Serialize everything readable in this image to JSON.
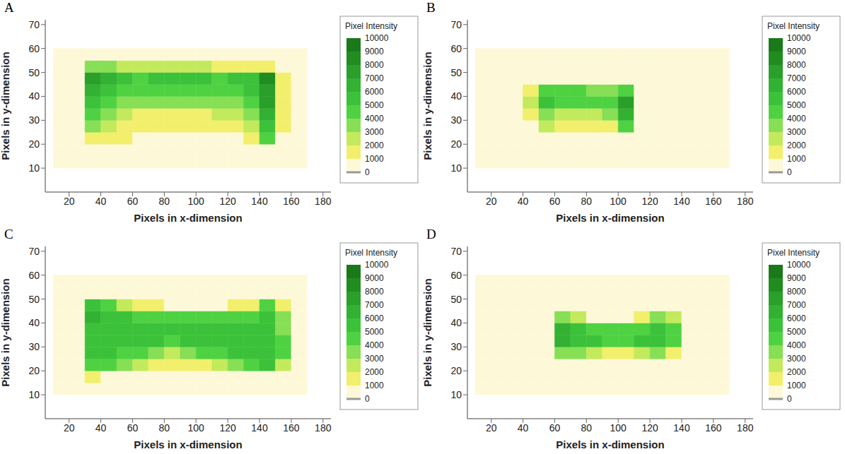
{
  "chart_data": [
    {
      "type": "heatmap",
      "panel": "A",
      "x_label": "Pixels in x-dimension",
      "y_label": "Pixels in y-dimension",
      "xlim": [
        5,
        185
      ],
      "xticks": [
        20,
        40,
        60,
        80,
        100,
        120,
        140,
        160,
        180
      ],
      "ylim": [
        0,
        72
      ],
      "yticks": [
        10,
        20,
        30,
        40,
        50,
        60,
        70
      ],
      "x_edges": [
        10,
        20,
        30,
        40,
        50,
        60,
        70,
        80,
        90,
        100,
        110,
        120,
        130,
        140,
        150,
        160,
        170
      ],
      "y_edges": [
        10,
        15,
        20,
        25,
        30,
        35,
        40,
        45,
        50,
        55,
        60
      ],
      "cells": [
        [
          300,
          300,
          300,
          300,
          300,
          300,
          300,
          300,
          300,
          300,
          300,
          300,
          300,
          300,
          300,
          300
        ],
        [
          300,
          300,
          300,
          300,
          300,
          300,
          300,
          300,
          300,
          300,
          300,
          300,
          300,
          300,
          300,
          300
        ],
        [
          300,
          300,
          1500,
          1500,
          1000,
          800,
          800,
          800,
          800,
          800,
          800,
          900,
          1000,
          4000,
          800,
          300
        ],
        [
          300,
          300,
          3000,
          2500,
          1500,
          1200,
          1200,
          1200,
          1200,
          1200,
          1500,
          1500,
          2000,
          5500,
          1000,
          300
        ],
        [
          300,
          300,
          4000,
          3000,
          2000,
          1500,
          1500,
          1500,
          1500,
          1800,
          2000,
          2500,
          3000,
          6500,
          1200,
          300
        ],
        [
          300,
          300,
          5500,
          4500,
          3500,
          3000,
          3000,
          3000,
          3000,
          3000,
          3500,
          3500,
          4500,
          7000,
          1200,
          300
        ],
        [
          300,
          300,
          6500,
          5000,
          4500,
          4000,
          4500,
          4500,
          4500,
          4000,
          4500,
          4000,
          5000,
          7500,
          1200,
          300
        ],
        [
          300,
          300,
          7000,
          6000,
          5000,
          4500,
          5000,
          5000,
          5000,
          5000,
          4000,
          5000,
          5500,
          8000,
          1000,
          300
        ],
        [
          300,
          300,
          3000,
          3000,
          2500,
          2500,
          2500,
          2500,
          2500,
          2500,
          1000,
          1000,
          1000,
          1500,
          300,
          300
        ],
        [
          300,
          300,
          300,
          300,
          300,
          300,
          300,
          300,
          300,
          300,
          300,
          300,
          300,
          300,
          300,
          300
        ]
      ],
      "colorbar": {
        "title": "Pixel Intensity",
        "range": [
          0,
          10000
        ],
        "ticks": [
          0,
          1000,
          2000,
          3000,
          4000,
          5000,
          6000,
          7000,
          8000,
          9000,
          10000
        ]
      }
    },
    {
      "type": "heatmap",
      "panel": "B",
      "x_label": "Pixels in x-dimension",
      "y_label": "Pixels in y-dimension",
      "xlim": [
        5,
        185
      ],
      "xticks": [
        20,
        40,
        60,
        80,
        100,
        120,
        140,
        160,
        180
      ],
      "ylim": [
        0,
        72
      ],
      "yticks": [
        10,
        20,
        30,
        40,
        50,
        60,
        70
      ],
      "x_edges": [
        10,
        20,
        30,
        40,
        50,
        60,
        70,
        80,
        90,
        100,
        110,
        120,
        130,
        140,
        150,
        160,
        170
      ],
      "y_edges": [
        10,
        15,
        20,
        25,
        30,
        35,
        40,
        45,
        50,
        55,
        60
      ],
      "cells": [
        [
          300,
          300,
          300,
          300,
          300,
          300,
          300,
          300,
          300,
          300,
          300,
          300,
          300,
          300,
          300,
          300
        ],
        [
          300,
          300,
          300,
          300,
          300,
          300,
          300,
          300,
          300,
          300,
          300,
          300,
          300,
          300,
          300,
          300
        ],
        [
          300,
          300,
          300,
          300,
          300,
          300,
          300,
          300,
          300,
          300,
          300,
          300,
          300,
          300,
          300,
          300
        ],
        [
          300,
          300,
          300,
          800,
          2000,
          1200,
          1000,
          1000,
          1500,
          4000,
          300,
          300,
          300,
          300,
          300,
          300
        ],
        [
          300,
          300,
          300,
          1500,
          3500,
          2500,
          2000,
          2000,
          3000,
          6500,
          300,
          300,
          300,
          300,
          300,
          300
        ],
        [
          300,
          300,
          300,
          2500,
          5000,
          4000,
          4000,
          4000,
          4500,
          7500,
          300,
          300,
          300,
          300,
          300,
          300
        ],
        [
          300,
          300,
          300,
          1500,
          4000,
          4000,
          4000,
          3500,
          3000,
          4000,
          300,
          300,
          300,
          300,
          300,
          300
        ],
        [
          300,
          300,
          300,
          300,
          300,
          300,
          300,
          300,
          300,
          300,
          300,
          300,
          300,
          300,
          300,
          300
        ],
        [
          300,
          300,
          300,
          300,
          300,
          300,
          300,
          300,
          300,
          300,
          300,
          300,
          300,
          300,
          300,
          300
        ],
        [
          300,
          300,
          300,
          300,
          300,
          300,
          300,
          300,
          300,
          300,
          300,
          300,
          300,
          300,
          300,
          300
        ]
      ],
      "colorbar": {
        "title": "Pixel Intensity",
        "range": [
          0,
          10000
        ],
        "ticks": [
          0,
          1000,
          2000,
          3000,
          4000,
          5000,
          6000,
          7000,
          8000,
          9000,
          10000
        ]
      }
    },
    {
      "type": "heatmap",
      "panel": "C",
      "x_label": "Pixels in x-dimension",
      "y_label": "Pixels in y-dimension",
      "xlim": [
        5,
        185
      ],
      "xticks": [
        20,
        40,
        60,
        80,
        100,
        120,
        140,
        160,
        180
      ],
      "ylim": [
        0,
        72
      ],
      "yticks": [
        10,
        20,
        30,
        40,
        50,
        60,
        70
      ],
      "x_edges": [
        10,
        20,
        30,
        40,
        50,
        60,
        70,
        80,
        90,
        100,
        110,
        120,
        130,
        140,
        150,
        160,
        170
      ],
      "y_edges": [
        10,
        15,
        20,
        25,
        30,
        35,
        40,
        45,
        50,
        55,
        60
      ],
      "cells": [
        [
          300,
          300,
          300,
          300,
          300,
          300,
          300,
          300,
          300,
          300,
          300,
          300,
          300,
          300,
          300,
          300
        ],
        [
          300,
          300,
          1500,
          300,
          300,
          300,
          300,
          300,
          300,
          300,
          300,
          300,
          300,
          300,
          300,
          300
        ],
        [
          300,
          300,
          4500,
          4000,
          3000,
          2000,
          1500,
          1000,
          1000,
          1500,
          2500,
          3500,
          4500,
          5000,
          2500,
          300
        ],
        [
          300,
          300,
          5000,
          5000,
          4500,
          4000,
          3500,
          2500,
          3000,
          4000,
          4500,
          5000,
          5500,
          5500,
          4000,
          300
        ],
        [
          300,
          300,
          5000,
          5000,
          5000,
          5000,
          5000,
          4500,
          5000,
          5000,
          5000,
          5000,
          5500,
          5500,
          4000,
          300
        ],
        [
          300,
          300,
          5500,
          5500,
          5000,
          5000,
          5000,
          5000,
          5000,
          5000,
          5000,
          5000,
          5000,
          5500,
          3500,
          300
        ],
        [
          300,
          300,
          6000,
          5500,
          5000,
          4500,
          4000,
          4000,
          4000,
          4500,
          4500,
          4500,
          4500,
          5500,
          3000,
          300
        ],
        [
          300,
          300,
          5500,
          4000,
          2500,
          1500,
          1000,
          800,
          800,
          800,
          800,
          1000,
          1500,
          4500,
          1500,
          300
        ],
        [
          300,
          300,
          300,
          300,
          300,
          300,
          300,
          300,
          300,
          300,
          300,
          300,
          300,
          300,
          300,
          300
        ],
        [
          300,
          300,
          300,
          300,
          300,
          300,
          300,
          300,
          300,
          300,
          300,
          300,
          300,
          300,
          300,
          300
        ]
      ],
      "colorbar": {
        "title": "Pixel Intensity",
        "range": [
          0,
          10000
        ],
        "ticks": [
          0,
          1000,
          2000,
          3000,
          4000,
          5000,
          6000,
          7000,
          8000,
          9000,
          10000
        ]
      }
    },
    {
      "type": "heatmap",
      "panel": "D",
      "x_label": "Pixels in x-dimension",
      "y_label": "Pixels in y-dimension",
      "xlim": [
        5,
        185
      ],
      "xticks": [
        20,
        40,
        60,
        80,
        100,
        120,
        140,
        160,
        180
      ],
      "ylim": [
        0,
        72
      ],
      "yticks": [
        10,
        20,
        30,
        40,
        50,
        60,
        70
      ],
      "x_edges": [
        10,
        20,
        30,
        40,
        50,
        60,
        70,
        80,
        90,
        100,
        110,
        120,
        130,
        140,
        150,
        160,
        170
      ],
      "y_edges": [
        10,
        15,
        20,
        25,
        30,
        35,
        40,
        45,
        50,
        55,
        60
      ],
      "cells": [
        [
          300,
          300,
          300,
          300,
          300,
          300,
          300,
          300,
          300,
          300,
          300,
          300,
          300,
          300,
          300,
          300
        ],
        [
          300,
          300,
          300,
          300,
          300,
          300,
          300,
          300,
          300,
          300,
          300,
          300,
          300,
          300,
          300,
          300
        ],
        [
          300,
          300,
          300,
          300,
          300,
          800,
          300,
          300,
          300,
          300,
          300,
          300,
          300,
          300,
          300,
          300
        ],
        [
          300,
          300,
          300,
          300,
          300,
          3000,
          3500,
          2000,
          1500,
          1500,
          2000,
          3000,
          1500,
          300,
          300,
          300
        ],
        [
          300,
          300,
          300,
          300,
          300,
          6000,
          5500,
          5000,
          4500,
          4500,
          5000,
          5500,
          4000,
          300,
          300,
          300
        ],
        [
          300,
          300,
          300,
          300,
          300,
          6500,
          5000,
          4000,
          4000,
          4000,
          4500,
          5500,
          4000,
          300,
          300,
          300
        ],
        [
          300,
          300,
          300,
          300,
          300,
          3500,
          2000,
          800,
          600,
          800,
          1500,
          3000,
          2000,
          300,
          300,
          300
        ],
        [
          300,
          300,
          300,
          300,
          300,
          300,
          300,
          300,
          300,
          300,
          300,
          300,
          300,
          300,
          300,
          300
        ],
        [
          300,
          300,
          300,
          300,
          300,
          300,
          300,
          300,
          300,
          300,
          300,
          300,
          300,
          300,
          300,
          300
        ],
        [
          300,
          300,
          300,
          300,
          300,
          300,
          300,
          300,
          300,
          300,
          300,
          300,
          300,
          300,
          300,
          300
        ]
      ],
      "colorbar": {
        "title": "Pixel Intensity",
        "range": [
          0,
          10000
        ],
        "ticks": [
          0,
          1000,
          2000,
          3000,
          4000,
          5000,
          6000,
          7000,
          8000,
          9000,
          10000
        ]
      }
    }
  ]
}
